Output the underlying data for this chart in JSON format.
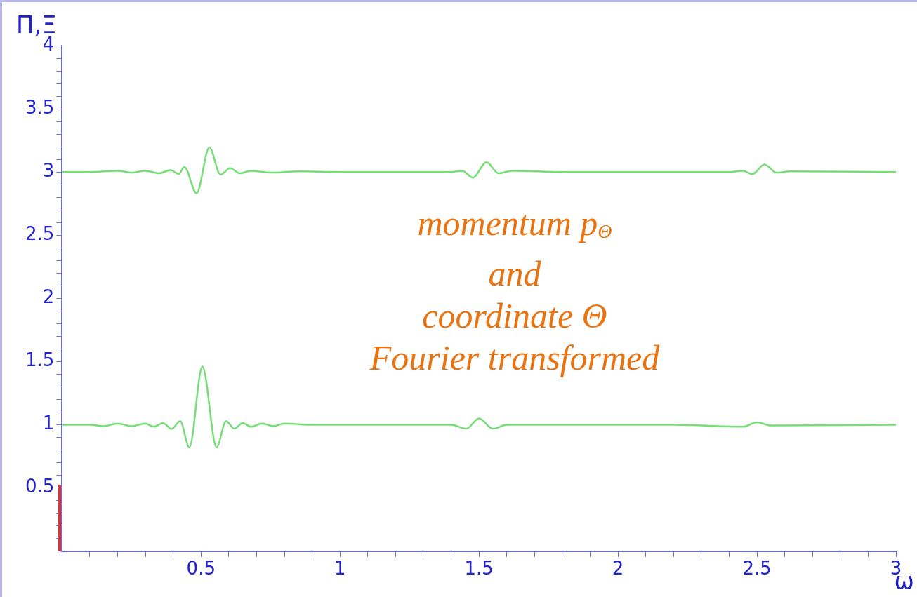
{
  "chart_data": {
    "type": "line",
    "xlabel": "ω",
    "ylabel": "Π,Ξ",
    "annotations": [
      "momentum p$_{Θ}$\nand\ncoordinate Θ\nFourier transformed"
    ],
    "xlim": [
      0,
      3
    ],
    "ylim": [
      0,
      4
    ],
    "xticks": [
      {
        "value": 0.1,
        "label": null
      },
      {
        "value": 0.2,
        "label": null
      },
      {
        "value": 0.3,
        "label": null
      },
      {
        "value": 0.4,
        "label": null
      },
      0.5,
      {
        "value": 0.6,
        "label": null
      },
      {
        "value": 0.7,
        "label": null
      },
      {
        "value": 0.8,
        "label": null
      },
      {
        "value": 0.9,
        "label": null
      },
      1,
      {
        "value": 1.1,
        "label": null
      },
      {
        "value": 1.2,
        "label": null
      },
      {
        "value": 1.3,
        "label": null
      },
      {
        "value": 1.4,
        "label": null
      },
      1.5,
      {
        "value": 1.6,
        "label": null
      },
      {
        "value": 1.7,
        "label": null
      },
      {
        "value": 1.8,
        "label": null
      },
      {
        "value": 1.9,
        "label": null
      },
      2,
      {
        "value": 2.1,
        "label": null
      },
      {
        "value": 2.2,
        "label": null
      },
      {
        "value": 2.3,
        "label": null
      },
      {
        "value": 2.4,
        "label": null
      },
      2.5,
      {
        "value": 2.6,
        "label": null
      },
      {
        "value": 2.7,
        "label": null
      },
      {
        "value": 2.8,
        "label": null
      },
      {
        "value": 2.9,
        "label": null
      },
      3
    ],
    "yticks": [
      {
        "value": 0.1,
        "label": null
      },
      {
        "value": 0.2,
        "label": null
      },
      {
        "value": 0.3,
        "label": null
      },
      {
        "value": 0.4,
        "label": null
      },
      0.5,
      {
        "value": 0.6,
        "label": null
      },
      {
        "value": 0.7,
        "label": null
      },
      {
        "value": 0.8,
        "label": null
      },
      {
        "value": 0.9,
        "label": null
      },
      1,
      {
        "value": 1.1,
        "label": null
      },
      {
        "value": 1.2,
        "label": null
      },
      {
        "value": 1.3,
        "label": null
      },
      {
        "value": 1.4,
        "label": null
      },
      1.5,
      {
        "value": 1.6,
        "label": null
      },
      {
        "value": 1.7,
        "label": null
      },
      {
        "value": 1.8,
        "label": null
      },
      {
        "value": 1.9,
        "label": null
      },
      2,
      {
        "value": 2.1,
        "label": null
      },
      {
        "value": 2.2,
        "label": null
      },
      {
        "value": 2.3,
        "label": null
      },
      {
        "value": 2.4,
        "label": null
      },
      2.5,
      {
        "value": 2.6,
        "label": null
      },
      {
        "value": 2.7,
        "label": null
      },
      {
        "value": 2.8,
        "label": null
      },
      {
        "value": 2.9,
        "label": null
      },
      3,
      {
        "value": 3.1,
        "label": null
      },
      {
        "value": 3.2,
        "label": null
      },
      {
        "value": 3.3,
        "label": null
      },
      {
        "value": 3.4,
        "label": null
      },
      3.5,
      {
        "value": 3.6,
        "label": null
      },
      {
        "value": 3.7,
        "label": null
      },
      {
        "value": 3.8,
        "label": null
      },
      {
        "value": 3.9,
        "label": null
      },
      4
    ],
    "marker": "none",
    "line_style": "solid",
    "series": [
      {
        "color": "#77dd77",
        "x": [
          0,
          0.1,
          0.2,
          0.25,
          0.3,
          0.35,
          0.39,
          0.42,
          0.44,
          0.484,
          0.53,
          0.57,
          0.605,
          0.64,
          0.68,
          0.75,
          0.85,
          1.0,
          1.2,
          1.4,
          1.44,
          1.478,
          1.527,
          1.57,
          1.62,
          1.8,
          2.2,
          2.4,
          2.45,
          2.483,
          2.527,
          2.57,
          2.62,
          3
        ],
        "values": [
          3,
          3,
          3.01,
          2.995,
          3.01,
          2.99,
          3.015,
          2.985,
          3.04,
          2.833,
          3.194,
          2.98,
          3.03,
          2.99,
          3.01,
          2.995,
          3.005,
          3,
          3,
          3,
          3.01,
          2.956,
          3.078,
          2.99,
          3.01,
          3,
          3,
          3,
          3.01,
          2.983,
          3.06,
          2.995,
          3.005,
          3
        ]
      },
      {
        "color": "#77dd77",
        "x": [
          0,
          0.1,
          0.15,
          0.2,
          0.25,
          0.3,
          0.33,
          0.363,
          0.394,
          0.425,
          0.458,
          0.505,
          0.556,
          0.59,
          0.62,
          0.65,
          0.68,
          0.72,
          0.76,
          0.8,
          0.9,
          1.0,
          1.2,
          1.4,
          1.455,
          1.5,
          1.55,
          1.6,
          1.8,
          2.2,
          2.45,
          2.5,
          2.55,
          3
        ],
        "values": [
          1,
          1,
          0.99,
          1.01,
          0.99,
          1.01,
          0.985,
          1.015,
          0.967,
          1.03,
          0.822,
          1.461,
          0.822,
          1.03,
          0.97,
          1.015,
          0.985,
          1.01,
          0.99,
          1.01,
          1,
          1,
          1,
          1,
          0.97,
          1.05,
          0.97,
          1,
          1,
          1,
          0.985,
          1.02,
          0.995,
          1
        ]
      }
    ]
  }
}
